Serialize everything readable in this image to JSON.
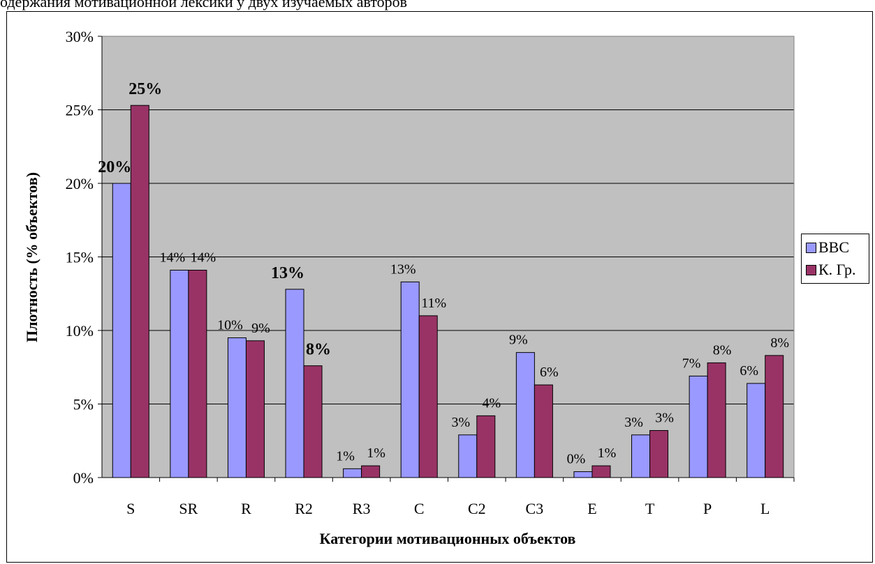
{
  "page": {
    "top_text": "одержания мотивационной лексики у двух изучаемых авторов"
  },
  "chart_data": {
    "type": "bar",
    "title": "",
    "xlabel": "Категории мотивационных объектов",
    "ylabel": "Плотность (% объектов)",
    "categories": [
      "S",
      "SR",
      "R",
      "R2",
      "R3",
      "C",
      "C2",
      "C3",
      "E",
      "T",
      "P",
      "L"
    ],
    "ylim": [
      0,
      0.3
    ],
    "yticks": [
      "0%",
      "5%",
      "10%",
      "15%",
      "20%",
      "25%",
      "30%"
    ],
    "grid": true,
    "legend_position": "right",
    "series": [
      {
        "name": "BBC",
        "color": "#9999ff",
        "values": [
          0.2,
          0.141,
          0.095,
          0.128,
          0.006,
          0.133,
          0.029,
          0.085,
          0.004,
          0.029,
          0.069,
          0.064
        ],
        "labels": [
          "20%",
          "14%",
          "10%",
          "13%",
          "1%",
          "13%",
          "3%",
          "9%",
          "0%",
          "3%",
          "7%",
          "6%"
        ],
        "bold": [
          true,
          false,
          false,
          true,
          false,
          false,
          false,
          false,
          false,
          false,
          false,
          false
        ]
      },
      {
        "name": "К. Гр.",
        "color": "#993366",
        "values": [
          0.253,
          0.141,
          0.093,
          0.076,
          0.008,
          0.11,
          0.042,
          0.063,
          0.008,
          0.032,
          0.078,
          0.083
        ],
        "labels": [
          "25%",
          "14%",
          "9%",
          "8%",
          "1%",
          "11%",
          "4%",
          "6%",
          "1%",
          "3%",
          "8%",
          "8%"
        ],
        "bold": [
          true,
          false,
          false,
          true,
          false,
          false,
          false,
          false,
          false,
          false,
          false,
          false
        ]
      }
    ],
    "plot_background": "#c0c0c0"
  }
}
